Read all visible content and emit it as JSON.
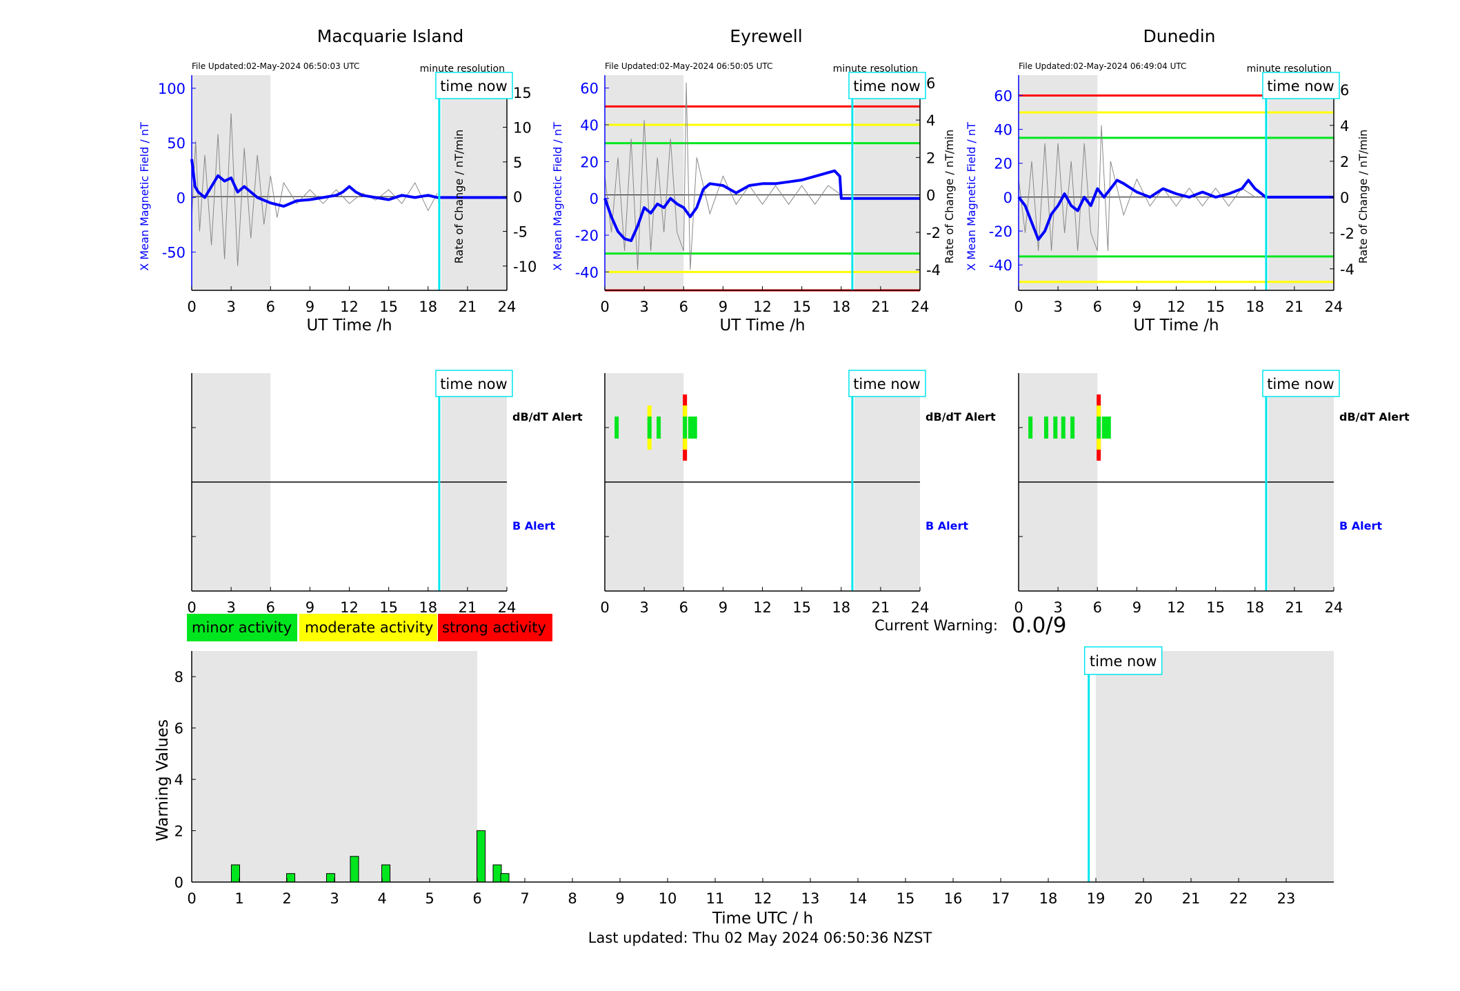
{
  "colors": {
    "shade": "#e6e6e6",
    "x_field": "#0000ff",
    "rate": "#000000",
    "time_now": "#00e5ee",
    "minor": "#00e61e",
    "moderate": "#ffff00",
    "strong": "#ff0000"
  },
  "footer": {
    "last_updated": "Last updated: Thu 02 May 2024 06:50:36 NZST"
  },
  "warning": {
    "current_label": "Current Warning:",
    "current_value": "0.0/9"
  },
  "legend": {
    "minor": "minor activity",
    "moderate": "moderate activity",
    "strong": "strong activity"
  },
  "alerts": {
    "dbdt_label": "dB/dT Alert",
    "b_label": "B Alert"
  },
  "common": {
    "time_now_label": "time now",
    "resolution_label": "minute resolution",
    "xlabel": "UT Time /h",
    "ylabel_left": "X Mean Magnetic Field / nT",
    "ylabel_right": "Rate of Change / nT/min",
    "xticks": [
      "0",
      "3",
      "6",
      "9",
      "12",
      "15",
      "18",
      "21",
      "24"
    ]
  },
  "chart_data": [
    {
      "type": "line",
      "title": "Macquarie Island",
      "file_updated": "File Updated:02-May-2024 06:50:03 UTC",
      "xlim": [
        0,
        24
      ],
      "ylim_left": [
        -85,
        112
      ],
      "ylim_right": [
        -13.5,
        17.5
      ],
      "yticks_left": [
        "100",
        "50",
        "0",
        "-50"
      ],
      "yticks_right": [
        "15",
        "10",
        "5",
        "0",
        "-5",
        "-10"
      ],
      "time_now": 18.85,
      "night_shading": [
        [
          0,
          6
        ],
        [
          19,
          24
        ]
      ],
      "thresholds": [],
      "x_field": {
        "name": "X Mean Magnetic Field",
        "x": [
          0,
          0.25,
          0.5,
          1,
          1.5,
          2,
          2.5,
          3,
          3.5,
          4,
          5,
          6,
          7,
          8,
          9,
          10,
          11,
          11.5,
          12,
          12.5,
          13,
          14,
          15,
          16,
          17,
          18,
          18.7,
          19,
          24
        ],
        "y": [
          35,
          10,
          5,
          0,
          10,
          20,
          15,
          18,
          5,
          10,
          0,
          -5,
          -8,
          -3,
          -2,
          0,
          2,
          5,
          10,
          5,
          2,
          0,
          -2,
          2,
          0,
          2,
          0,
          0,
          0
        ]
      },
      "rate_of_change": {
        "name": "Rate of Change",
        "x": [
          0,
          0.3,
          0.6,
          1,
          1.5,
          2,
          2.5,
          3,
          3.5,
          4,
          4.5,
          5,
          5.5,
          6,
          6.5,
          7,
          8,
          9,
          10,
          11,
          12,
          13,
          14,
          15,
          16,
          17,
          18,
          18.7
        ],
        "y": [
          -3,
          8,
          -5,
          6,
          -7,
          9,
          -9,
          12,
          -10,
          7,
          -6,
          6,
          -4,
          3,
          -3,
          2,
          -1,
          1,
          -1,
          1,
          -1,
          0.5,
          -0.5,
          1,
          -1,
          2,
          -2,
          0.5
        ]
      },
      "alerts": {
        "dbdt": [],
        "b": []
      }
    },
    {
      "type": "line",
      "title": "Eyrewell",
      "file_updated": "File Updated:02-May-2024 06:50:05 UTC",
      "xlim": [
        0,
        24
      ],
      "ylim_left": [
        -50,
        67
      ],
      "ylim_right": [
        -5.1,
        6.4
      ],
      "yticks_left": [
        "60",
        "40",
        "20",
        "0",
        "-20",
        "-40"
      ],
      "yticks_right": [
        "6",
        "4",
        "2",
        "0",
        "-2",
        "-4"
      ],
      "time_now": 18.85,
      "night_shading": [
        [
          0,
          6
        ],
        [
          19,
          24
        ]
      ],
      "thresholds": [
        {
          "level": "strong",
          "values": [
            50,
            -50
          ]
        },
        {
          "level": "moderate",
          "values": [
            40,
            -40
          ]
        },
        {
          "level": "minor",
          "values": [
            30,
            -30
          ]
        }
      ],
      "x_field": {
        "name": "X Mean Magnetic Field",
        "x": [
          0,
          0.5,
          1,
          1.5,
          2,
          2.5,
          3,
          3.5,
          4,
          4.5,
          5,
          5.5,
          6,
          6.5,
          7,
          7.5,
          8,
          9,
          10,
          11,
          12,
          13,
          14,
          15,
          16,
          17,
          17.5,
          17.9,
          18,
          24
        ],
        "y": [
          0,
          -10,
          -18,
          -22,
          -23,
          -15,
          -5,
          -8,
          -3,
          -5,
          0,
          -3,
          -5,
          -10,
          -5,
          5,
          8,
          7,
          3,
          7,
          8,
          8,
          9,
          10,
          12,
          14,
          15,
          12,
          0,
          0
        ]
      },
      "rate_of_change": {
        "name": "Rate of Change",
        "x": [
          0,
          0.5,
          1,
          1.5,
          2,
          2.5,
          3,
          3.5,
          4,
          4.5,
          5,
          5.5,
          6,
          6.2,
          6.5,
          7,
          8,
          9,
          10,
          11,
          12,
          13,
          14,
          15,
          16,
          17,
          18
        ],
        "y": [
          1,
          -2,
          2,
          -3,
          3,
          -4,
          4,
          -3,
          2,
          -2,
          3,
          -2,
          -3,
          6,
          -4,
          2,
          -1,
          1,
          -0.5,
          0.5,
          -0.5,
          0.5,
          -0.5,
          0.5,
          -0.5,
          0.5,
          0
        ]
      },
      "alerts": {
        "dbdt": [
          {
            "t": 0.9,
            "level": "minor"
          },
          {
            "t": 3.4,
            "level": "moderate"
          },
          {
            "t": 4.1,
            "level": "minor"
          },
          {
            "t": 6.1,
            "level": "strong"
          },
          {
            "t": 6.5,
            "level": "minor"
          }
        ],
        "b": []
      }
    },
    {
      "type": "line",
      "title": "Dunedin",
      "file_updated": "File Updated:02-May-2024 06:49:04 UTC",
      "xlim": [
        0,
        24
      ],
      "ylim_left": [
        -55,
        72
      ],
      "ylim_right": [
        -5.2,
        6.8
      ],
      "yticks_left": [
        "60",
        "40",
        "20",
        "0",
        "-20",
        "-40"
      ],
      "yticks_right": [
        "6",
        "4",
        "2",
        "0",
        "-2",
        "-4"
      ],
      "time_now": 18.85,
      "night_shading": [
        [
          0,
          6
        ],
        [
          19,
          24
        ]
      ],
      "thresholds": [
        {
          "level": "strong",
          "values": [
            60
          ]
        },
        {
          "level": "moderate",
          "values": [
            50,
            -50
          ]
        },
        {
          "level": "minor",
          "values": [
            35,
            -35
          ]
        }
      ],
      "x_field": {
        "name": "X Mean Magnetic Field",
        "x": [
          0,
          0.5,
          1,
          1.5,
          2,
          2.5,
          3,
          3.5,
          4,
          4.5,
          5,
          5.5,
          6,
          6.5,
          7,
          7.5,
          8,
          9,
          10,
          11,
          12,
          13,
          14,
          15,
          16,
          17,
          17.5,
          18,
          18.5,
          18.8,
          24
        ],
        "y": [
          0,
          -5,
          -15,
          -25,
          -20,
          -10,
          -5,
          2,
          -5,
          -8,
          0,
          -5,
          5,
          0,
          5,
          10,
          8,
          3,
          0,
          5,
          2,
          0,
          3,
          0,
          2,
          5,
          10,
          5,
          2,
          0,
          0
        ]
      },
      "rate_of_change": {
        "name": "Rate of Change",
        "x": [
          0,
          0.5,
          1,
          1.5,
          2,
          2.5,
          3,
          3.5,
          4,
          4.5,
          5,
          5.5,
          6,
          6.3,
          6.8,
          7,
          8,
          9,
          10,
          11,
          12,
          13,
          14,
          15,
          16,
          17,
          18
        ],
        "y": [
          1,
          -2,
          2,
          -3,
          3,
          -3,
          3,
          -2,
          2,
          -3,
          3,
          -2,
          -3,
          4,
          -3,
          2,
          -1,
          1,
          -0.5,
          0.5,
          -0.5,
          0.5,
          -0.5,
          0.5,
          -0.5,
          0.5,
          0
        ]
      },
      "alerts": {
        "dbdt": [
          {
            "t": 0.9,
            "level": "minor"
          },
          {
            "t": 2.1,
            "level": "minor"
          },
          {
            "t": 2.8,
            "level": "minor"
          },
          {
            "t": 3.4,
            "level": "minor"
          },
          {
            "t": 4.1,
            "level": "minor"
          },
          {
            "t": 6.1,
            "level": "strong"
          },
          {
            "t": 6.5,
            "level": "minor"
          }
        ],
        "b": []
      }
    },
    {
      "type": "bar",
      "xlabel": "Time UTC / h",
      "ylabel": "Warning Values",
      "xlim": [
        0,
        24
      ],
      "ylim": [
        0,
        9
      ],
      "xticks": [
        "0",
        "1",
        "2",
        "3",
        "4",
        "5",
        "6",
        "7",
        "8",
        "9",
        "10",
        "11",
        "12",
        "13",
        "14",
        "15",
        "16",
        "17",
        "18",
        "19",
        "20",
        "21",
        "22",
        "23"
      ],
      "yticks": [
        "0",
        "2",
        "4",
        "6",
        "8"
      ],
      "time_now": 18.85,
      "night_shading": [
        [
          0,
          6
        ],
        [
          19,
          24
        ]
      ],
      "bars": {
        "x": [
          0.92,
          2.08,
          2.92,
          3.42,
          4.08,
          6.08,
          6.42,
          6.58
        ],
        "values": [
          0.67,
          0.33,
          0.33,
          1.0,
          0.67,
          2.0,
          0.67,
          0.33
        ]
      }
    }
  ]
}
